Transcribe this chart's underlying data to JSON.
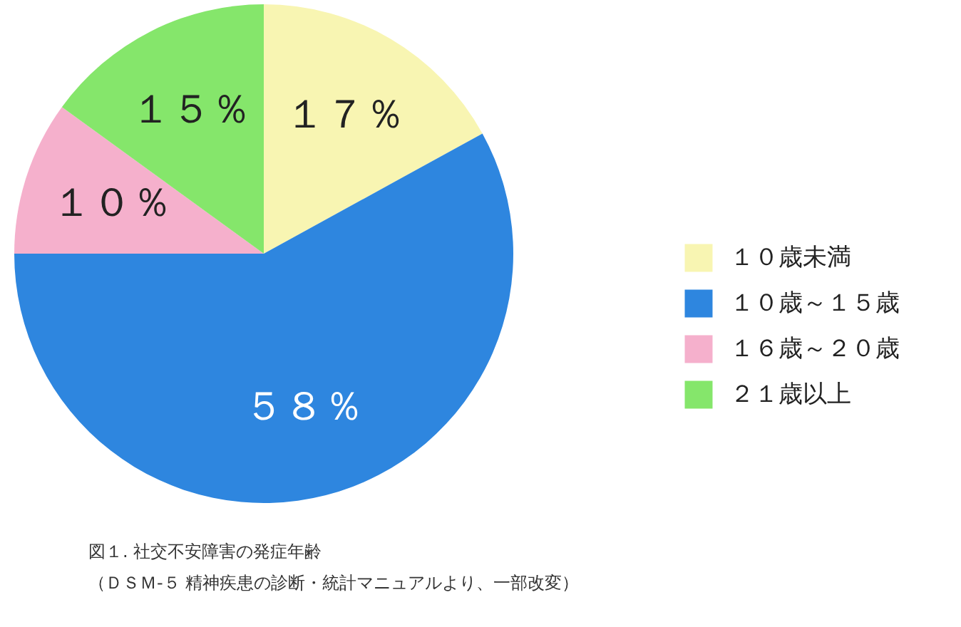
{
  "chart_data": {
    "type": "pie",
    "categories": [
      "１０歳未満",
      "１０歳～１５歳",
      "１６歳～２０歳",
      "２１歳以上"
    ],
    "values": [
      17,
      58,
      10,
      15
    ],
    "colors": [
      "#f8f5b2",
      "#2e86df",
      "#f5b0cc",
      "#85e66b"
    ],
    "value_labels": [
      "１７％",
      "５８％",
      "１０％",
      "１５％"
    ],
    "legend": "right",
    "annotations": [
      "図１. 社交不安障害の発症年齢",
      "（ＤＳＭ-５ 精神疾患の診断・統計マニュアルより、一部改変）"
    ]
  }
}
